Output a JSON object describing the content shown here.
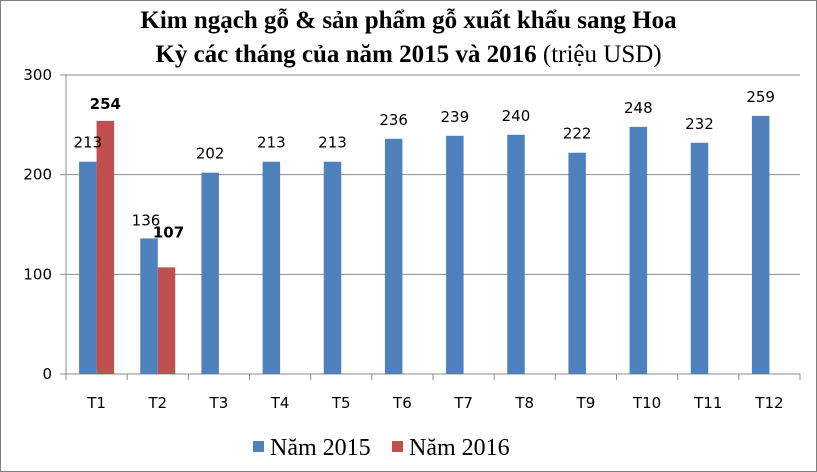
{
  "title": {
    "line1": "Kim ngạch gỗ & sản phẩm gỗ xuất khẩu sang Hoa",
    "line2_bold": "Kỳ các tháng của năm 2015 và 2016",
    "line2_normal": "(triệu USD)"
  },
  "chart_data": {
    "type": "bar",
    "categories": [
      "T1",
      "T2",
      "T3",
      "T4",
      "T5",
      "T6",
      "T7",
      "T8",
      "T9",
      "T10",
      "T11",
      "T12"
    ],
    "series": [
      {
        "name": "Năm 2015",
        "color": "#4f81bd",
        "values": [
          213,
          136,
          202,
          213,
          213,
          236,
          239,
          240,
          222,
          248,
          232,
          259
        ]
      },
      {
        "name": "Năm 2016",
        "color": "#c0504d",
        "values": [
          254,
          107,
          null,
          null,
          null,
          null,
          null,
          null,
          null,
          null,
          null,
          null
        ]
      }
    ],
    "ylim": [
      0,
      300
    ],
    "yticks": [
      0,
      100,
      200,
      300
    ],
    "grid": true,
    "legend": "bottom"
  }
}
